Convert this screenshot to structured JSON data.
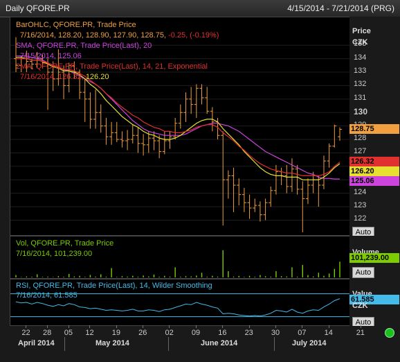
{
  "header": {
    "title": "Daily QFORE.PR",
    "range": "4/15/2014 - 7/21/2014 (PRG)"
  },
  "price_pane": {
    "axis_title": "Price",
    "axis_unit": "CZK",
    "legend": [
      {
        "label": "BarOHLC, QFORE.PR, Trade Price",
        "color": "#f0a040"
      },
      {
        "label": "7/16/2014, 128.20, 128.90, 127.90, 128.75, ",
        "color": "#f0a040",
        "extra": "-0.25, (-0.19%)",
        "extra_color": "#e03030"
      },
      {
        "label": "SMA, QFORE.PR, Trade Price(Last), 20",
        "color": "#cc44dd"
      },
      {
        "label": "7/15/2014, 125.06",
        "color": "#cc44dd"
      },
      {
        "label": "2MA, QFORE.PR, Trade Price(Last), 14, 21, Exponential",
        "color": "#e03030"
      },
      {
        "label": "7/16/2014, 126.32, ",
        "color": "#e03030",
        "extra": "126.20",
        "extra_color": "#e8e030"
      }
    ],
    "ticks": [
      "135",
      "134",
      "133",
      "132",
      "131",
      "130",
      "129",
      "128",
      "127",
      "126",
      "125",
      "124",
      "123",
      "122"
    ],
    "auto": "Auto"
  },
  "vol_pane": {
    "legend1": "Vol, QFORE.PR, Trade Price",
    "legend2": "7/16/2014, 101,239.00",
    "axis_title": "Volume",
    "auto": "Auto"
  },
  "rsi_pane": {
    "legend1": "RSI, QFORE.PR, Trade Price(Last), 14, Wilder Smoothing",
    "legend2": "7/16/2014, 61.585",
    "axis_title": "Value",
    "axis_unit": "CZK",
    "auto": "Auto"
  },
  "x_axis": {
    "day_ticks": [
      "22",
      "28",
      "05",
      "12",
      "19",
      "26",
      "02",
      "09",
      "16",
      "23",
      "30",
      "07",
      "14",
      "21"
    ],
    "months": [
      "April 2014",
      "May 2014",
      "June 2014",
      "July 2014"
    ]
  },
  "colors": {
    "bars": "#f0a040",
    "sma": "#cc44dd",
    "ema_fast": "#e8e030",
    "ema_slow": "#e03030",
    "volume": "#7ccc00",
    "rsi": "#44bbe8"
  },
  "chart_data": [
    {
      "type": "line",
      "title": "Daily QFORE.PR",
      "ylabel": "Price",
      "ylim": [
        121.2,
        136.3
      ],
      "x": [
        "4/16",
        "4/17",
        "4/22",
        "4/23",
        "4/24",
        "4/25",
        "4/28",
        "4/29",
        "4/30",
        "5/02",
        "5/05",
        "5/06",
        "5/07",
        "5/09",
        "5/12",
        "5/13",
        "5/14",
        "5/15",
        "5/16",
        "5/19",
        "5/20",
        "5/21",
        "5/22",
        "5/23",
        "5/26",
        "5/27",
        "5/28",
        "5/29",
        "5/30",
        "6/02",
        "6/03",
        "6/04",
        "6/05",
        "6/06",
        "6/09",
        "6/10",
        "6/11",
        "6/12",
        "6/13",
        "6/16",
        "6/17",
        "6/18",
        "6/19",
        "6/20",
        "6/23",
        "6/24",
        "6/25",
        "6/26",
        "6/27",
        "6/30",
        "7/01",
        "7/02",
        "7/03",
        "7/04",
        "7/07",
        "7/08",
        "7/09",
        "7/10",
        "7/11",
        "7/14",
        "7/15",
        "7/16"
      ],
      "ohlc": [
        [
          134.0,
          135.6,
          133.0,
          133.5
        ],
        [
          133.5,
          134.2,
          133.0,
          134.0
        ],
        [
          134.0,
          134.6,
          133.0,
          133.8
        ],
        [
          133.8,
          134.0,
          133.2,
          133.6
        ],
        [
          133.6,
          134.5,
          133.3,
          134.0
        ],
        [
          134.0,
          134.3,
          133.3,
          133.7
        ],
        [
          133.7,
          134.0,
          130.2,
          133.0
        ],
        [
          133.0,
          133.8,
          131.6,
          132.5
        ],
        [
          132.5,
          134.7,
          132.0,
          133.0
        ],
        [
          133.0,
          133.5,
          131.0,
          132.0
        ],
        [
          132.0,
          133.7,
          131.5,
          133.5
        ],
        [
          133.5,
          133.8,
          132.5,
          133.0
        ],
        [
          133.0,
          133.2,
          131.0,
          131.5
        ],
        [
          131.5,
          132.5,
          129.3,
          131.0
        ],
        [
          131.0,
          131.5,
          128.8,
          129.5
        ],
        [
          129.5,
          131.7,
          128.8,
          130.0
        ],
        [
          130.0,
          130.6,
          128.5,
          129.0
        ],
        [
          129.0,
          129.6,
          127.6,
          128.2
        ],
        [
          128.2,
          129.3,
          127.6,
          128.5
        ],
        [
          128.5,
          129.3,
          127.8,
          128.0
        ],
        [
          128.0,
          128.6,
          127.4,
          127.9
        ],
        [
          127.9,
          128.7,
          127.2,
          128.0
        ],
        [
          128.0,
          129.1,
          127.7,
          128.3
        ],
        [
          128.3,
          128.9,
          127.0,
          127.7
        ],
        [
          127.7,
          128.4,
          126.8,
          127.6
        ],
        [
          127.6,
          128.6,
          127.0,
          128.1
        ],
        [
          128.1,
          128.6,
          127.2,
          127.9
        ],
        [
          127.9,
          128.3,
          126.6,
          127.1
        ],
        [
          127.1,
          128.6,
          126.9,
          127.9
        ],
        [
          127.9,
          128.6,
          127.3,
          128.2
        ],
        [
          128.2,
          129.6,
          128.0,
          129.2
        ],
        [
          129.2,
          130.6,
          128.8,
          130.0
        ],
        [
          130.0,
          131.5,
          129.3,
          131.0
        ],
        [
          131.0,
          131.9,
          129.9,
          130.6
        ],
        [
          130.6,
          132.1,
          129.6,
          131.8
        ],
        [
          131.8,
          132.1,
          130.6,
          131.1
        ],
        [
          131.1,
          131.9,
          129.9,
          130.1
        ],
        [
          130.1,
          130.4,
          128.6,
          129.3
        ],
        [
          129.3,
          129.6,
          128.0,
          128.3
        ],
        [
          128.3,
          128.6,
          121.6,
          125.0
        ],
        [
          125.0,
          125.7,
          123.6,
          125.3
        ],
        [
          125.3,
          125.9,
          122.6,
          124.6
        ],
        [
          124.6,
          125.1,
          123.1,
          123.9
        ],
        [
          123.9,
          124.4,
          122.6,
          123.3
        ],
        [
          123.3,
          123.9,
          122.1,
          122.9
        ],
        [
          122.9,
          123.6,
          122.6,
          123.1
        ],
        [
          123.1,
          123.4,
          121.9,
          122.4
        ],
        [
          122.4,
          123.6,
          122.0,
          123.3
        ],
        [
          123.3,
          124.5,
          123.0,
          124.2
        ],
        [
          124.2,
          126.1,
          123.9,
          125.6
        ],
        [
          125.6,
          125.9,
          124.6,
          125.3
        ],
        [
          125.3,
          126.1,
          124.0,
          124.5
        ],
        [
          124.5,
          126.6,
          124.1,
          125.8
        ],
        [
          125.8,
          126.1,
          123.9,
          124.3
        ],
        [
          124.3,
          124.9,
          121.1,
          123.6
        ],
        [
          123.6,
          125.1,
          123.2,
          124.6
        ],
        [
          124.6,
          125.6,
          124.0,
          125.0
        ],
        [
          125.0,
          125.3,
          123.0,
          124.6
        ],
        [
          124.6,
          126.8,
          124.3,
          126.4
        ],
        [
          126.4,
          127.7,
          125.9,
          127.5
        ],
        [
          127.5,
          129.1,
          127.4,
          129.0
        ],
        [
          128.2,
          128.9,
          127.9,
          128.75
        ]
      ],
      "series": [
        {
          "name": "SMA, QFORE.PR, Trade Price(Last), 20",
          "values": [
            134.2,
            134.2,
            134.2,
            134.1,
            134.0,
            133.9,
            133.7,
            133.5,
            133.4,
            133.2,
            133.1,
            132.9,
            132.7,
            132.5,
            132.3,
            132.1,
            131.8,
            131.4,
            131.0,
            130.6,
            130.2,
            129.8,
            129.4,
            129.1,
            128.8,
            128.6,
            128.5,
            128.4,
            128.3,
            128.3,
            128.3,
            128.3,
            128.4,
            128.6,
            128.8,
            129.0,
            129.1,
            129.2,
            129.2,
            129.1,
            129.0,
            128.8,
            128.6,
            128.3,
            128.0,
            127.7,
            127.4,
            127.1,
            126.9,
            126.7,
            126.5,
            126.3,
            126.1,
            125.9,
            125.7,
            125.5,
            125.4,
            125.2,
            125.1,
            125.1,
            125.06,
            125.06
          ]
        },
        {
          "name": "2MA, QFORE.PR, Trade Price(Last), 14, 21, Exponential (14)",
          "values": [
            134.1,
            134.1,
            134.0,
            133.9,
            133.9,
            133.8,
            133.6,
            133.4,
            133.3,
            133.1,
            133.1,
            133.0,
            132.8,
            132.5,
            132.1,
            131.8,
            131.4,
            130.9,
            130.5,
            130.1,
            129.7,
            129.4,
            129.1,
            128.9,
            128.6,
            128.4,
            128.3,
            128.1,
            128.0,
            128.0,
            128.1,
            128.3,
            128.6,
            128.9,
            129.2,
            129.4,
            129.5,
            129.5,
            129.3,
            128.8,
            128.4,
            128.0,
            127.6,
            127.1,
            126.7,
            126.3,
            125.9,
            125.6,
            125.4,
            125.3,
            125.3,
            125.2,
            125.2,
            125.2,
            125.0,
            125.0,
            125.0,
            125.0,
            125.2,
            125.5,
            125.9,
            126.2
          ]
        },
        {
          "name": "2MA, QFORE.PR, Trade Price(Last), 14, 21, Exponential (21)",
          "values": [
            134.0,
            134.0,
            134.0,
            133.9,
            133.9,
            133.8,
            133.7,
            133.5,
            133.4,
            133.2,
            133.2,
            133.1,
            132.9,
            132.7,
            132.4,
            132.1,
            131.8,
            131.4,
            131.1,
            130.7,
            130.4,
            130.1,
            129.8,
            129.6,
            129.3,
            129.1,
            128.9,
            128.8,
            128.6,
            128.6,
            128.5,
            128.5,
            128.6,
            128.7,
            128.9,
            129.0,
            129.1,
            129.1,
            128.9,
            128.5,
            128.2,
            127.9,
            127.5,
            127.2,
            126.8,
            126.5,
            126.2,
            126.0,
            125.8,
            125.7,
            125.6,
            125.5,
            125.5,
            125.4,
            125.3,
            125.3,
            125.3,
            125.3,
            125.4,
            125.6,
            126.0,
            126.32
          ]
        }
      ]
    },
    {
      "type": "bar",
      "title": "Vol, QFORE.PR, Trade Price",
      "ylabel": "Volume",
      "ylim": [
        0,
        250000
      ],
      "values": [
        15000,
        2000,
        6000,
        4000,
        20000,
        3000,
        5000,
        2000,
        8000,
        4000,
        22000,
        6000,
        10000,
        3000,
        16000,
        5000,
        20000,
        4000,
        60000,
        3000,
        8000,
        5000,
        10000,
        4000,
        12000,
        6000,
        18000,
        4000,
        10000,
        5000,
        65000,
        4000,
        8000,
        6000,
        12000,
        30000,
        4000,
        10000,
        5000,
        175000,
        40000,
        5000,
        9000,
        3000,
        10000,
        4000,
        15000,
        8000,
        5000,
        40000,
        8000,
        6000,
        65000,
        4000,
        80000,
        15000,
        6000,
        30000,
        10000,
        25000,
        55000,
        101239
      ]
    },
    {
      "type": "line",
      "title": "RSI, QFORE.PR, Trade Price(Last), 14, Wilder Smoothing",
      "ylim": [
        15,
        95
      ],
      "hlines": [
        30,
        70
      ],
      "values": [
        56,
        54,
        55,
        52,
        55,
        53,
        50,
        48,
        51,
        49,
        53,
        51,
        47,
        46,
        44,
        45,
        43,
        41,
        42,
        41,
        40,
        41,
        43,
        40,
        40,
        42,
        41,
        39,
        42,
        43,
        46,
        49,
        52,
        51,
        55,
        52,
        50,
        47,
        45,
        35,
        36,
        35,
        33,
        32,
        31,
        32,
        31,
        33,
        36,
        41,
        40,
        38,
        43,
        38,
        36,
        40,
        42,
        41,
        47,
        52,
        58,
        61.585
      ]
    }
  ]
}
